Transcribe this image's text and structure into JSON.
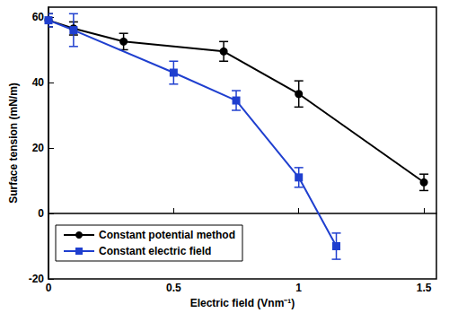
{
  "chart_data": {
    "type": "line",
    "x_label": "Electric field (Vnm⁻¹)",
    "y_label": "Surface tension (mN/m)",
    "xlim": [
      0,
      1.55
    ],
    "xticks": [
      0,
      0.5,
      1,
      1.5
    ],
    "ylim": [
      -20,
      63
    ],
    "yticks": [
      -20,
      0,
      20,
      40,
      60
    ],
    "grid": false,
    "legend": "lower left",
    "series": [
      {
        "name": "Constant potential method",
        "color": "#000000",
        "marker": "circle",
        "line_style": "solid",
        "x": [
          0,
          0.1,
          0.3,
          0.7,
          1.0,
          1.5
        ],
        "values": [
          59,
          56.5,
          52.5,
          49.5,
          36.5,
          9.5
        ],
        "errors": [
          2,
          2,
          2.5,
          3,
          4,
          2.5
        ]
      },
      {
        "name": "Constant electric field",
        "color": "#1f3fcf",
        "marker": "square",
        "line_style": "solid",
        "x": [
          0,
          0.1,
          0.5,
          0.75,
          1.0,
          1.15
        ],
        "values": [
          59,
          56,
          43,
          34.5,
          11,
          -10
        ],
        "errors": [
          2,
          5,
          3.5,
          3,
          3,
          4
        ]
      }
    ]
  }
}
